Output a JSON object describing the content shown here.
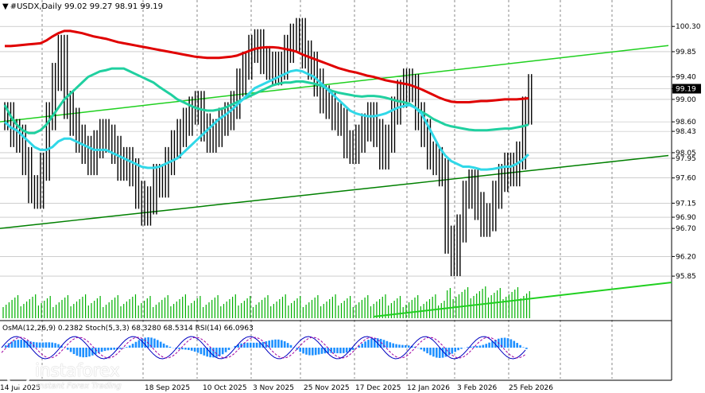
{
  "header": {
    "symbol_line": "#USDX,Daily  99.02 99.27 98.91 99.19",
    "indicator_line": "OsMA(12,26,9) 0.2382  Stoch(5,3,3) 68.3280 68.5314  RSI(14) 66.0963"
  },
  "branding": {
    "name": "instaforex",
    "tagline": "Instant Forex Trading"
  },
  "colors": {
    "ema200": "#e00000",
    "ema144": "#20d0a0",
    "ema50": "#30d8e8",
    "trendline": "#20d020",
    "volume": "#00b000",
    "osma": "#1e90ff",
    "stoch_main": "#0000c0",
    "stoch_signal": "#a000a0",
    "price_bar": "#000000",
    "current_price_box": "#000000",
    "grid": "#8a8a8a"
  },
  "chart_data": {
    "type": "line",
    "title": "#USDX,Daily",
    "last_bar": {
      "open": 99.02,
      "high": 99.27,
      "low": 98.91,
      "close": 99.19
    },
    "ylim": [
      95.1,
      100.7
    ],
    "ytick_labels": [
      "100.30",
      "99.85",
      "99.40",
      "99.19",
      "99.00",
      "98.60",
      "98.43",
      "98.05",
      "97.95",
      "97.60",
      "97.15",
      "96.90",
      "96.70",
      "96.20",
      "95.85"
    ],
    "xtick_labels": [
      "14 Jul 2025",
      "18 Sep 2025",
      "10 Oct 2025",
      "3 Nov 2025",
      "25 Nov 2025",
      "17 Dec 2025",
      "12 Jan 2026",
      "3 Feb 2026",
      "25 Feb 2026"
    ],
    "price_close": [
      98.7,
      98.4,
      98.3,
      97.9,
      97.4,
      97.3,
      97.8,
      98.7,
      99.4,
      99.9,
      98.9,
      98.6,
      98.3,
      98.1,
      97.9,
      98.2,
      98.4,
      98.3,
      98.1,
      97.8,
      97.9,
      97.7,
      97.3,
      97.0,
      97.2,
      97.6,
      97.5,
      97.9,
      98.2,
      98.4,
      98.6,
      98.8,
      98.9,
      98.5,
      98.3,
      98.4,
      98.6,
      98.7,
      98.9,
      99.3,
      99.6,
      99.9,
      100.0,
      99.7,
      99.6,
      99.5,
      99.6,
      99.9,
      100.1,
      100.2,
      99.8,
      99.6,
      99.3,
      99.0,
      98.9,
      98.7,
      98.6,
      98.2,
      98.1,
      98.3,
      98.5,
      98.7,
      98.4,
      98.0,
      98.3,
      98.8,
      99.1,
      99.3,
      99.2,
      98.7,
      98.4,
      98.0,
      97.9,
      97.7,
      96.5,
      96.1,
      96.7,
      97.3,
      97.5,
      97.1,
      96.8,
      96.9,
      97.3,
      97.6,
      97.8,
      97.7,
      98.0,
      98.8,
      99.2
    ],
    "series": [
      {
        "name": "EMA(200)",
        "values": [
          99.95,
          99.95,
          99.96,
          99.97,
          99.98,
          99.99,
          100.0,
          100.05,
          100.12,
          100.18,
          100.22,
          100.22,
          100.2,
          100.18,
          100.15,
          100.12,
          100.1,
          100.08,
          100.05,
          100.02,
          100.0,
          99.98,
          99.96,
          99.94,
          99.92,
          99.9,
          99.88,
          99.86,
          99.84,
          99.82,
          99.8,
          99.78,
          99.76,
          99.75,
          99.74,
          99.74,
          99.74,
          99.75,
          99.76,
          99.78,
          99.82,
          99.86,
          99.9,
          99.92,
          99.93,
          99.93,
          99.92,
          99.9,
          99.88,
          99.85,
          99.8,
          99.76,
          99.72,
          99.68,
          99.64,
          99.6,
          99.56,
          99.53,
          99.5,
          99.48,
          99.45,
          99.42,
          99.4,
          99.37,
          99.34,
          99.32,
          99.3,
          99.28,
          99.26,
          99.22,
          99.18,
          99.13,
          99.08,
          99.03,
          98.99,
          98.96,
          98.95,
          98.95,
          98.95,
          98.96,
          98.97,
          98.97,
          98.98,
          98.99,
          99.0,
          99.0,
          99.0,
          99.01,
          99.02
        ]
      },
      {
        "name": "EMA(144)",
        "values": [
          98.9,
          98.7,
          98.55,
          98.45,
          98.4,
          98.4,
          98.45,
          98.55,
          98.7,
          98.85,
          99.0,
          99.1,
          99.2,
          99.3,
          99.4,
          99.45,
          99.5,
          99.52,
          99.55,
          99.55,
          99.55,
          99.5,
          99.45,
          99.4,
          99.35,
          99.3,
          99.22,
          99.15,
          99.08,
          99.0,
          98.95,
          98.9,
          98.85,
          98.82,
          98.8,
          98.8,
          98.82,
          98.85,
          98.9,
          98.95,
          99.0,
          99.05,
          99.1,
          99.15,
          99.2,
          99.25,
          99.28,
          99.3,
          99.3,
          99.32,
          99.32,
          99.3,
          99.28,
          99.25,
          99.2,
          99.15,
          99.12,
          99.1,
          99.08,
          99.06,
          99.05,
          99.06,
          99.06,
          99.05,
          99.03,
          99.0,
          98.97,
          98.95,
          98.92,
          98.85,
          98.78,
          98.72,
          98.65,
          98.6,
          98.55,
          98.52,
          98.5,
          98.48,
          98.46,
          98.45,
          98.45,
          98.45,
          98.46,
          98.47,
          98.48,
          98.48,
          98.5,
          98.52,
          98.55
        ]
      },
      {
        "name": "EMA(50)",
        "values": [
          98.6,
          98.5,
          98.45,
          98.35,
          98.25,
          98.15,
          98.1,
          98.1,
          98.15,
          98.25,
          98.3,
          98.3,
          98.25,
          98.2,
          98.15,
          98.1,
          98.1,
          98.1,
          98.05,
          98.0,
          97.95,
          97.9,
          97.85,
          97.8,
          97.78,
          97.78,
          97.8,
          97.85,
          97.9,
          97.95,
          98.05,
          98.15,
          98.25,
          98.35,
          98.45,
          98.55,
          98.65,
          98.72,
          98.8,
          98.9,
          99.0,
          99.1,
          99.2,
          99.25,
          99.3,
          99.35,
          99.4,
          99.45,
          99.5,
          99.52,
          99.5,
          99.45,
          99.4,
          99.3,
          99.2,
          99.1,
          99.0,
          98.9,
          98.8,
          98.75,
          98.72,
          98.7,
          98.7,
          98.72,
          98.75,
          98.8,
          98.85,
          98.88,
          98.9,
          98.85,
          98.75,
          98.55,
          98.35,
          98.15,
          98.0,
          97.9,
          97.85,
          97.8,
          97.8,
          97.78,
          97.75,
          97.75,
          97.76,
          97.78,
          97.8,
          97.8,
          97.85,
          97.92,
          98.02
        ]
      },
      {
        "name": "Lower trendline",
        "values": [
          96.7,
          96.75,
          96.8,
          96.85,
          96.9,
          96.95,
          97.0,
          97.05,
          97.1,
          97.15,
          97.2,
          97.25,
          97.3,
          97.35,
          97.4,
          97.45,
          97.5,
          97.55,
          97.6,
          97.65,
          97.7,
          97.75,
          97.8,
          97.85,
          97.9,
          97.95,
          98.0
        ]
      },
      {
        "name": "Upper trendline",
        "values": [
          98.6,
          98.68,
          98.76,
          98.84,
          98.92,
          99.0,
          99.08,
          99.16,
          99.24,
          99.32,
          99.4,
          99.48,
          99.56,
          99.64,
          99.72,
          99.8,
          99.88,
          99.96
        ]
      }
    ]
  }
}
